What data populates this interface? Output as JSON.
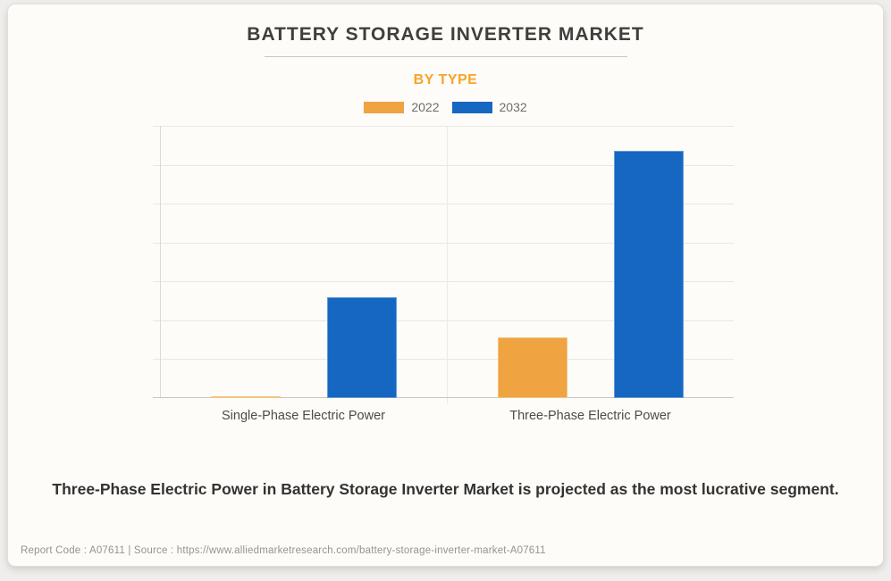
{
  "page": {
    "background_color": "#efeeec",
    "card_background_color": "#fdfcf8"
  },
  "header": {
    "title": "BATTERY STORAGE INVERTER MARKET",
    "subtitle": "BY TYPE",
    "title_color": "#3f3f3f",
    "subtitle_color": "#f9a42a"
  },
  "legend": {
    "items": [
      {
        "label": "2022",
        "color": "#efa341"
      },
      {
        "label": "2032",
        "color": "#1567c1"
      }
    ]
  },
  "chart_data": {
    "type": "bar",
    "title": "BATTERY STORAGE INVERTER MARKET",
    "subtitle": "BY TYPE",
    "categories": [
      "Single-Phase Electric Power",
      "Three-Phase Electric Power"
    ],
    "series": [
      {
        "name": "2022",
        "color": "#efa341",
        "values": [
          0.05,
          1.55
        ]
      },
      {
        "name": "2032",
        "color": "#1567c1",
        "values": [
          2.6,
          6.35
        ]
      }
    ],
    "xlabel": "",
    "ylabel": "",
    "ylim": [
      0,
      7
    ],
    "grid": true,
    "gridline_count": 8,
    "y_axis_tick_labels_visible": false,
    "value_units": "gridline units (y-axis is unlabeled in the image)",
    "legend_position": "top",
    "bar_colors": {
      "2022": "#efa341",
      "2032": "#1567c1"
    }
  },
  "caption": "Three-Phase Electric Power in Battery Storage Inverter Market is projected as the most lucrative segment.",
  "footer": {
    "text": "Report Code : A07611  |  Source : https://www.alliedmarketresearch.com/battery-storage-inverter-market-A07611"
  }
}
